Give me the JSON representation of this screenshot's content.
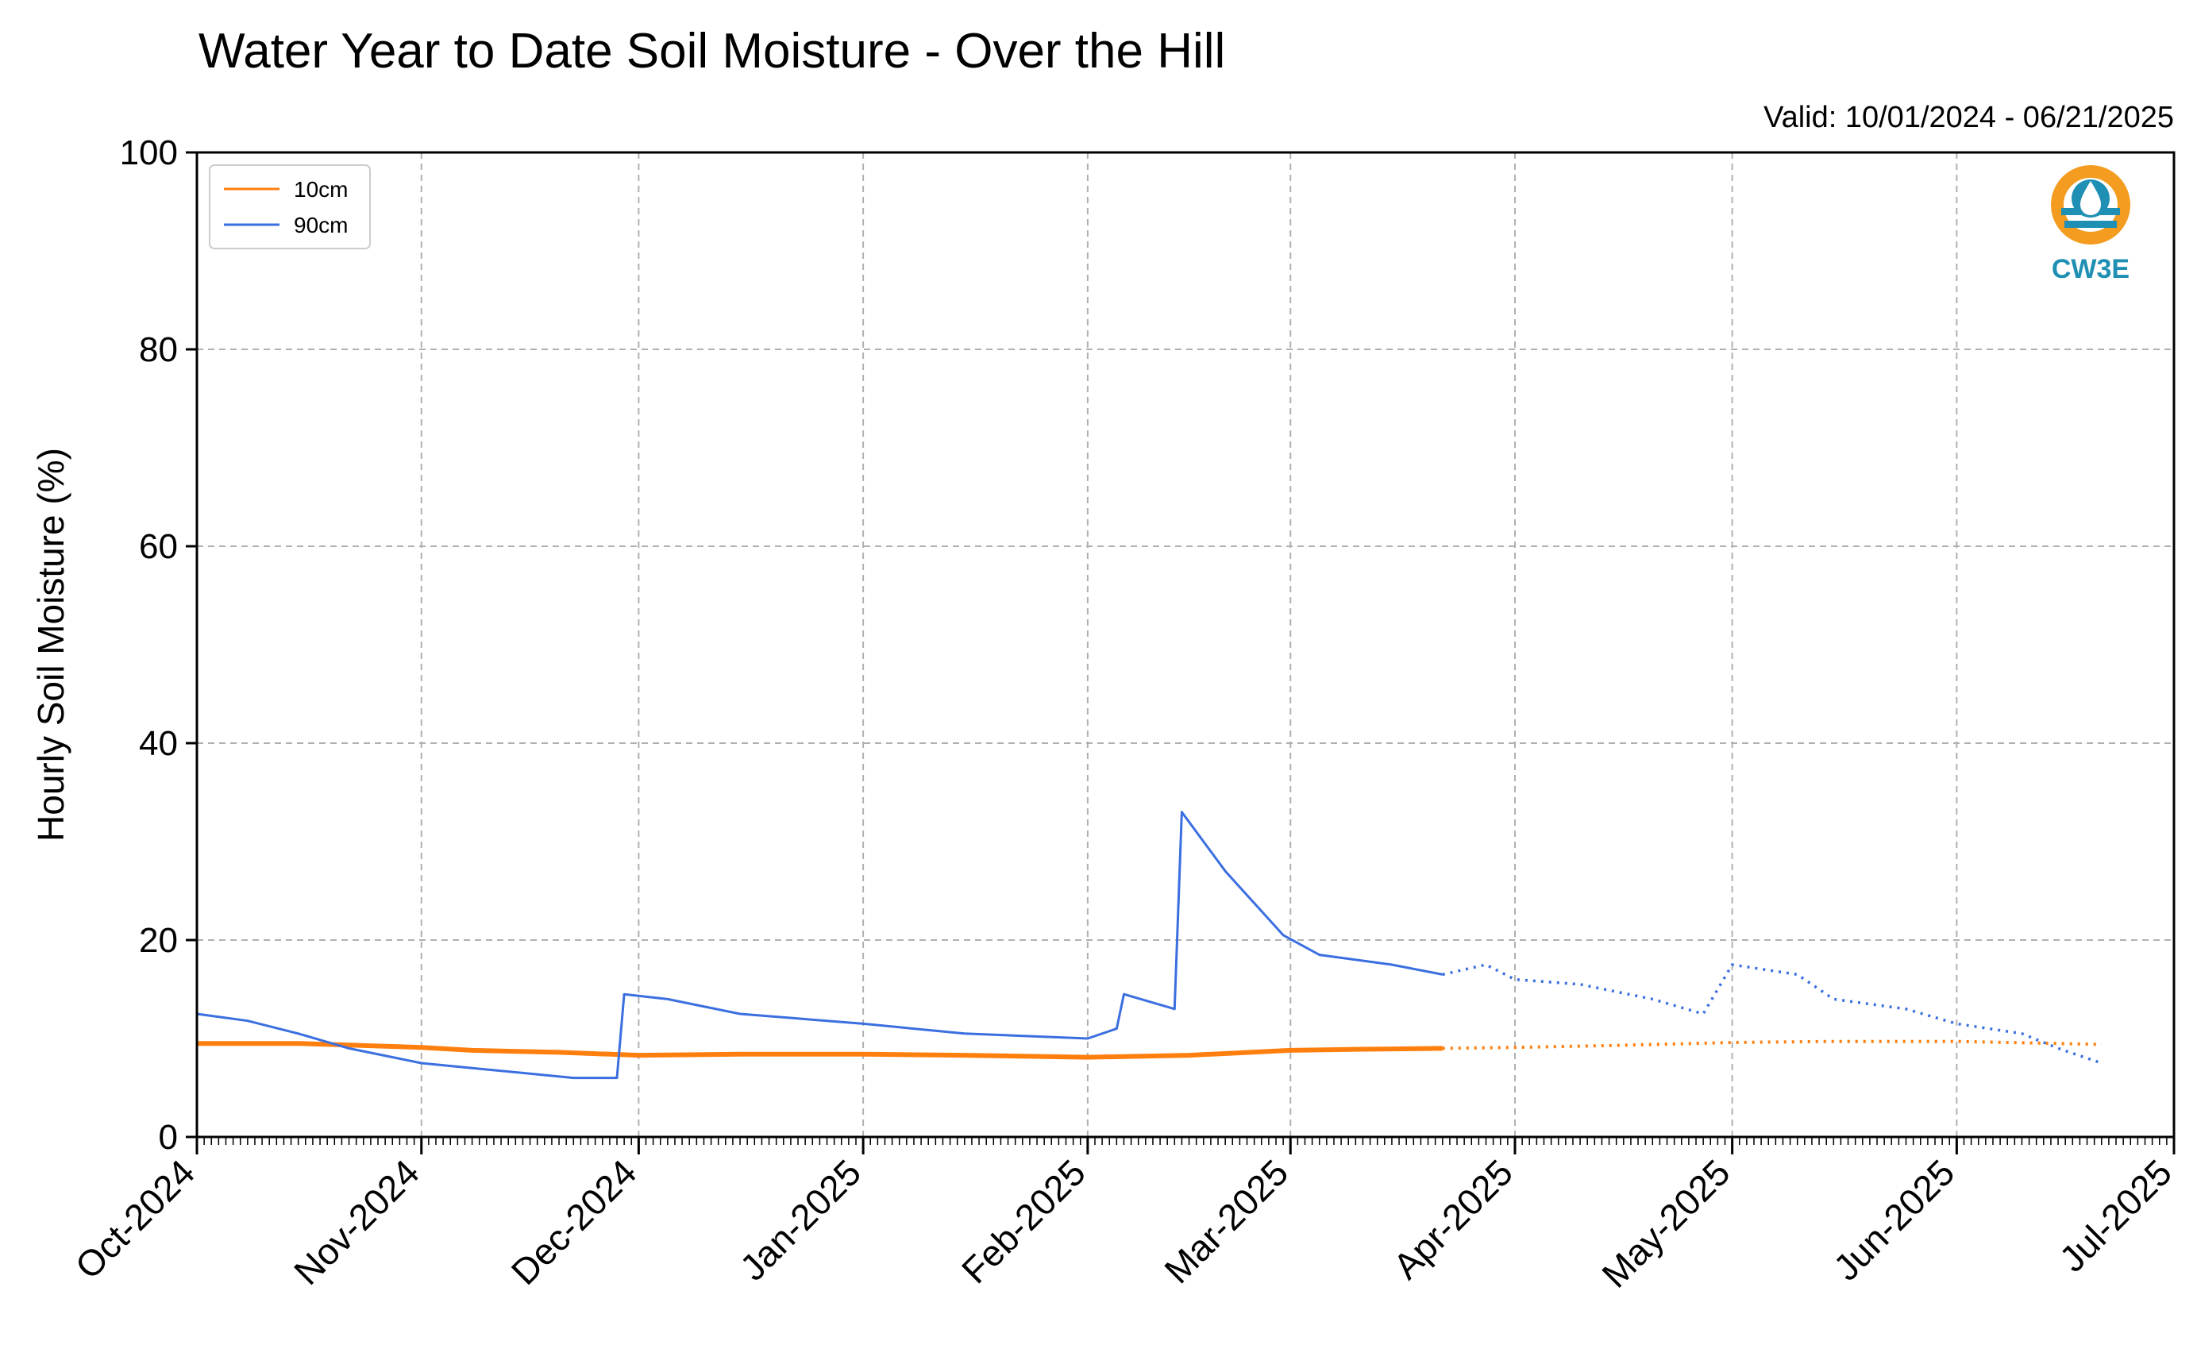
{
  "chart_data": {
    "type": "line",
    "title": "Water Year to Date Soil Moisture - Over the Hill",
    "valid_text": "Valid: 10/01/2024 - 06/21/2025",
    "ylabel": "Hourly Soil Moisture (%)",
    "ylim": [
      0,
      100
    ],
    "yticks": [
      "0",
      "20",
      "40",
      "60",
      "80",
      "100"
    ],
    "xlim": [
      "2024-10-01",
      "2025-07-01"
    ],
    "xticks": [
      {
        "date": "2024-10-01",
        "label": "Oct-2024"
      },
      {
        "date": "2024-11-01",
        "label": "Nov-2024"
      },
      {
        "date": "2024-12-01",
        "label": "Dec-2024"
      },
      {
        "date": "2025-01-01",
        "label": "Jan-2025"
      },
      {
        "date": "2025-02-01",
        "label": "Feb-2025"
      },
      {
        "date": "2025-03-01",
        "label": "Mar-2025"
      },
      {
        "date": "2025-04-01",
        "label": "Apr-2025"
      },
      {
        "date": "2025-05-01",
        "label": "May-2025"
      },
      {
        "date": "2025-06-01",
        "label": "Jun-2025"
      },
      {
        "date": "2025-07-01",
        "label": "Jul-2025"
      }
    ],
    "grid": true,
    "legend_position": "top-left",
    "logo_text": "CW3E",
    "colors": {
      "logo_orange": "#f39c1f",
      "logo_teal": "#1f8fb3"
    },
    "series": [
      {
        "name": "10cm",
        "color": "#ff7f0e",
        "points": [
          [
            "2024-10-01",
            9.5
          ],
          [
            "2024-10-15",
            9.5
          ],
          [
            "2024-11-01",
            9.1
          ],
          [
            "2024-11-08",
            8.8
          ],
          [
            "2024-11-20",
            8.6
          ],
          [
            "2024-12-01",
            8.3
          ],
          [
            "2024-12-15",
            8.4
          ],
          [
            "2025-01-01",
            8.4
          ],
          [
            "2025-01-15",
            8.3
          ],
          [
            "2025-02-01",
            8.1
          ],
          [
            "2025-02-15",
            8.3
          ],
          [
            "2025-03-01",
            8.8
          ],
          [
            "2025-03-10",
            8.9
          ],
          [
            "2025-03-22",
            9.0
          ],
          [
            "2025-04-01",
            9.1
          ],
          [
            "2025-04-15",
            9.3
          ],
          [
            "2025-05-01",
            9.6
          ],
          [
            "2025-05-15",
            9.7
          ],
          [
            "2025-06-01",
            9.7
          ],
          [
            "2025-06-21",
            9.4
          ]
        ]
      },
      {
        "name": "90cm",
        "color": "#3b6fe0",
        "points": [
          [
            "2024-10-01",
            12.5
          ],
          [
            "2024-10-08",
            11.8
          ],
          [
            "2024-10-15",
            10.5
          ],
          [
            "2024-10-22",
            9.0
          ],
          [
            "2024-11-01",
            7.5
          ],
          [
            "2024-11-08",
            7.0
          ],
          [
            "2024-11-15",
            6.5
          ],
          [
            "2024-11-22",
            6.0
          ],
          [
            "2024-11-28",
            6.0
          ],
          [
            "2024-11-29",
            14.5
          ],
          [
            "2024-12-05",
            14.0
          ],
          [
            "2024-12-15",
            12.5
          ],
          [
            "2025-01-01",
            11.5
          ],
          [
            "2025-01-15",
            10.5
          ],
          [
            "2025-02-01",
            10.0
          ],
          [
            "2025-02-05",
            11.0
          ],
          [
            "2025-02-06",
            14.5
          ],
          [
            "2025-02-13",
            13.0
          ],
          [
            "2025-02-14",
            33.0
          ],
          [
            "2025-02-20",
            27.0
          ],
          [
            "2025-02-28",
            20.5
          ],
          [
            "2025-03-05",
            18.5
          ],
          [
            "2025-03-15",
            17.5
          ],
          [
            "2025-03-22",
            16.5
          ],
          [
            "2025-03-28",
            17.5
          ],
          [
            "2025-04-01",
            16.0
          ],
          [
            "2025-04-10",
            15.5
          ],
          [
            "2025-04-20",
            14.0
          ],
          [
            "2025-04-27",
            12.5
          ],
          [
            "2025-05-01",
            17.5
          ],
          [
            "2025-05-10",
            16.5
          ],
          [
            "2025-05-15",
            14.0
          ],
          [
            "2025-05-25",
            13.0
          ],
          [
            "2025-06-01",
            11.5
          ],
          [
            "2025-06-10",
            10.5
          ],
          [
            "2025-06-15",
            9.0
          ],
          [
            "2025-06-21",
            7.5
          ]
        ]
      }
    ]
  }
}
